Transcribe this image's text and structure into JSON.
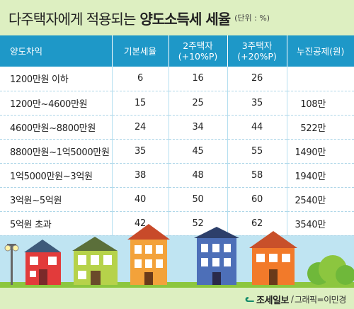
{
  "title": {
    "main": "다주택자에게 적용되는",
    "emphasis": "양도소득세 세율",
    "unit": "(단위 : %)"
  },
  "table": {
    "headers": [
      "양도차익",
      "기본세율",
      "2주택자\n(+10%P)",
      "3주택자\n(+20%P)",
      "누진공제(원)"
    ],
    "rows": [
      [
        "1200만원 이하",
        "6",
        "16",
        "26",
        ""
      ],
      [
        "1200만~4600만원",
        "15",
        "25",
        "35",
        "108만"
      ],
      [
        "4600만원~8800만원",
        "24",
        "34",
        "44",
        "522만"
      ],
      [
        "8800만원~1억5000만원",
        "35",
        "45",
        "55",
        "1490만"
      ],
      [
        "1억5000만원~3억원",
        "38",
        "48",
        "58",
        "1940만"
      ],
      [
        "3억원~5억원",
        "40",
        "50",
        "60",
        "2540만"
      ],
      [
        "5억원 초과",
        "42",
        "52",
        "62",
        "3540만"
      ]
    ]
  },
  "credit": {
    "brand": "조세일보",
    "separator": "/",
    "byline": "그래픽=이민경"
  },
  "colors": {
    "background": "#ddefc1",
    "header": "#1e98c8",
    "panel": "#bfe4f2",
    "grass": "#8cc63f"
  }
}
